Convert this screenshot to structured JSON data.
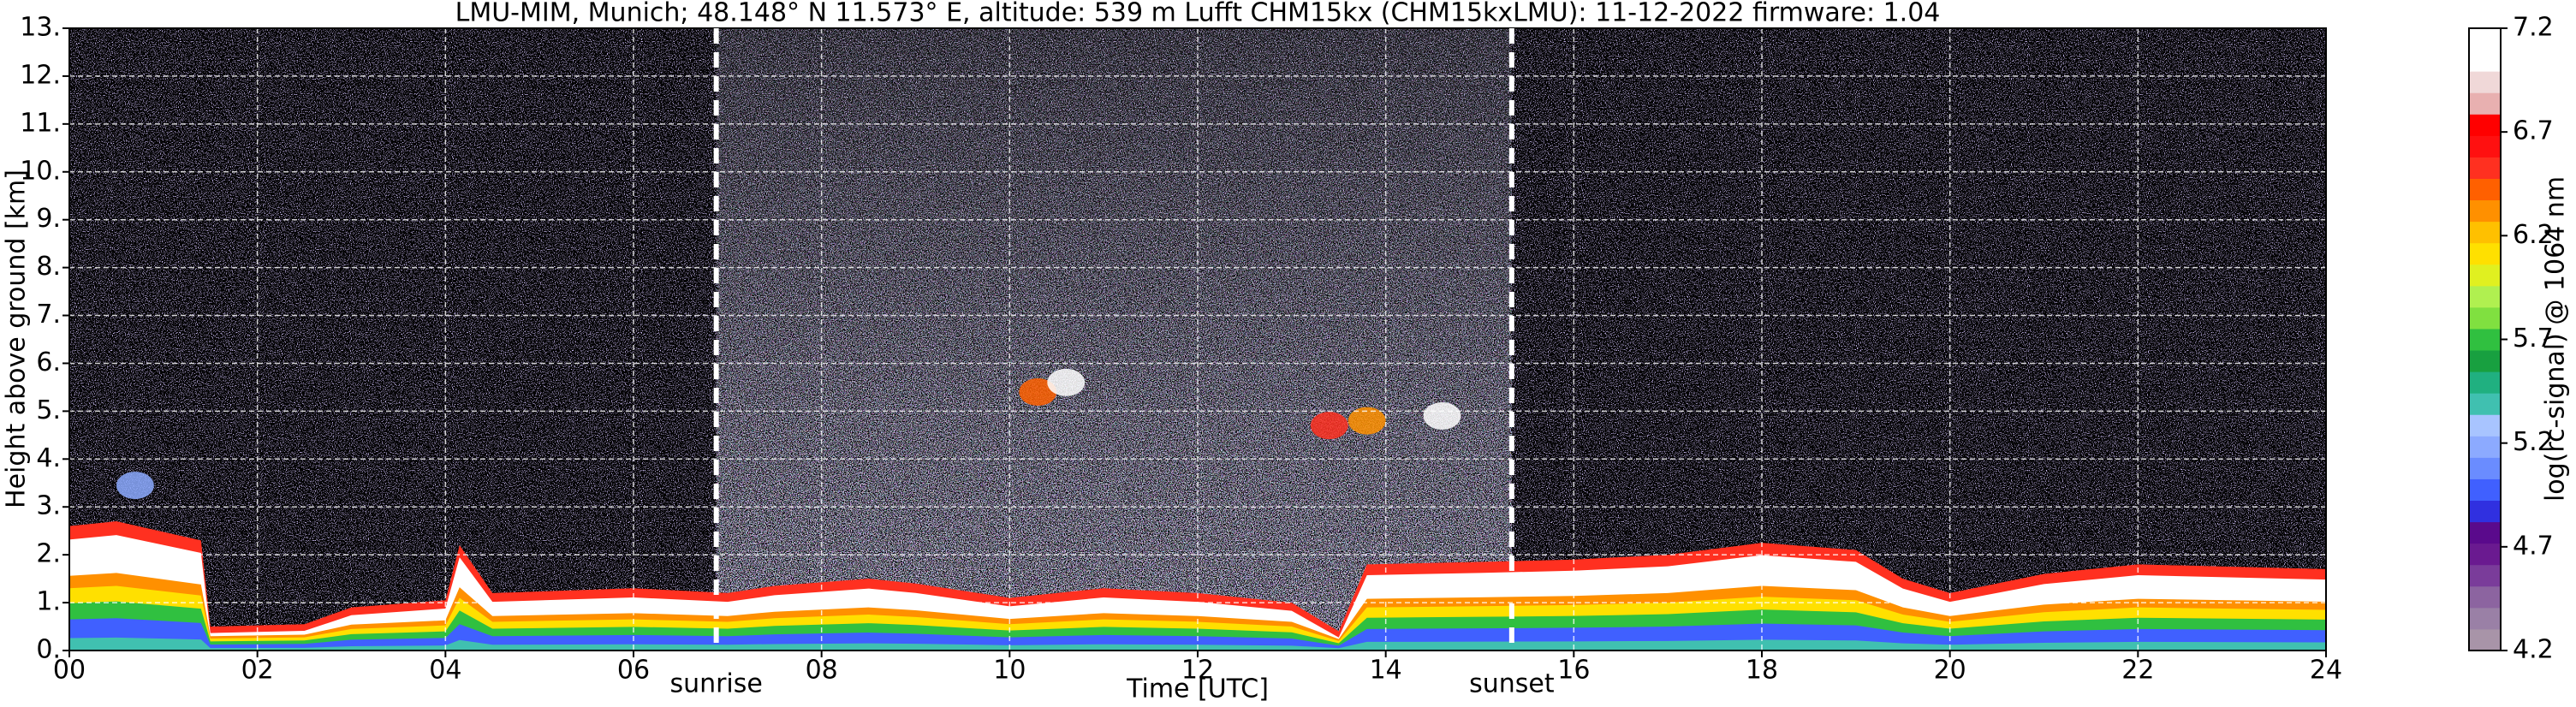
{
  "chart_data": {
    "type": "heatmap",
    "title": "LMU-MIM, Munich; 48.148° N 11.573° E, altitude: 539 m    Lufft CHM15kx (CHM15kxLMU): 11-12-2022    firmware: 1.04",
    "xlabel": "Time [UTC]",
    "ylabel": "Height above ground [km]",
    "xlim": [
      0,
      24
    ],
    "xticks": [
      {
        "value": 0,
        "label": "00"
      },
      {
        "value": 2,
        "label": "02"
      },
      {
        "value": 4,
        "label": "04"
      },
      {
        "value": 6,
        "label": "06"
      },
      {
        "value": 8,
        "label": "08"
      },
      10,
      12,
      14,
      16,
      18,
      20,
      22,
      24
    ],
    "ylim": [
      0,
      13
    ],
    "yticks": [
      {
        "value": 0,
        "label": "0."
      },
      {
        "value": 1,
        "label": "1."
      },
      {
        "value": 2,
        "label": "2."
      },
      {
        "value": 3,
        "label": "3."
      },
      {
        "value": 4,
        "label": "4."
      },
      {
        "value": 5,
        "label": "5."
      },
      {
        "value": 6,
        "label": "6."
      },
      {
        "value": 7,
        "label": "7."
      },
      {
        "value": 8,
        "label": "8."
      },
      {
        "value": 9,
        "label": "9."
      },
      {
        "value": 10,
        "label": "10."
      },
      {
        "value": 11,
        "label": "11."
      },
      {
        "value": 12,
        "label": "12."
      },
      {
        "value": 13,
        "label": "13."
      }
    ],
    "grid": true,
    "annotations": [
      {
        "label": "sunrise",
        "x": 6.88
      },
      {
        "label": "sunset",
        "x": 15.34
      }
    ],
    "colorbar": {
      "label": "log(rc-signal) @ 1064 nm",
      "lim": [
        4.2,
        7.2
      ],
      "ticks": [
        4.2,
        4.7,
        5.2,
        5.7,
        6.2,
        6.7,
        7.2
      ],
      "colors": [
        "#a894a8",
        "#9a80a6",
        "#8c64a0",
        "#7a3c9a",
        "#6a1a90",
        "#5a0a8c",
        "#3030e0",
        "#4060ff",
        "#6a8cff",
        "#8caaff",
        "#a8c4ff",
        "#40c0b0",
        "#20b080",
        "#18a040",
        "#30c040",
        "#80e040",
        "#b0f050",
        "#e0f020",
        "#ffe000",
        "#ffc000",
        "#ff9000",
        "#ff6000",
        "#ff3020",
        "#ff1010",
        "#ff0000",
        "#e8b0b0",
        "#f0d8d8",
        "#ffffff",
        "#ffffff"
      ]
    }
  }
}
